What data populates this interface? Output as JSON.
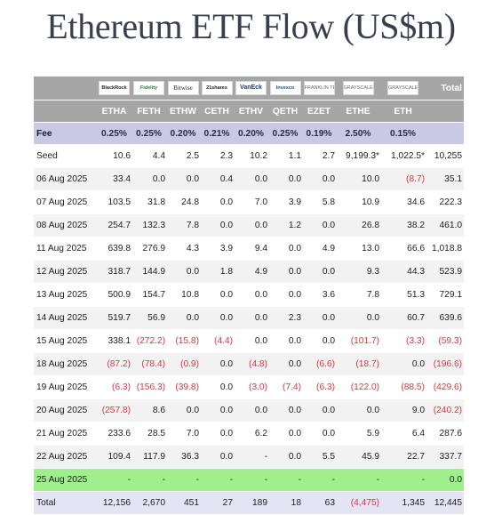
{
  "title": "Ethereum ETF Flow (US$m)",
  "columns": [
    {
      "logo": "BlackRock",
      "logo_icon": "blackrock-logo",
      "ticker": "ETHA",
      "fee": "0.25%"
    },
    {
      "logo": "Fidelity",
      "logo_icon": "fidelity-logo",
      "ticker": "FETH",
      "fee": "0.25%"
    },
    {
      "logo": "Bitwise",
      "logo_icon": "bitwise-logo",
      "ticker": "ETHW",
      "fee": "0.20%"
    },
    {
      "logo": "21shares",
      "logo_icon": "21shares-logo",
      "ticker": "CETH",
      "fee": "0.21%"
    },
    {
      "logo": "VanEck",
      "logo_icon": "vaneck-logo",
      "ticker": "ETHV",
      "fee": "0.20%"
    },
    {
      "logo": "Invesco",
      "logo_icon": "invesco-logo",
      "ticker": "QETH",
      "fee": "0.25%"
    },
    {
      "logo": "FRANKLIN TEMPLETON",
      "logo_icon": "franklin-templeton-logo",
      "ticker": "EZET",
      "fee": "0.19%"
    },
    {
      "logo": "GRAYSCALE",
      "logo_icon": "grayscale-logo",
      "ticker": "ETHE",
      "fee": "2.50%"
    },
    {
      "logo": "GRAYSCALE",
      "logo_icon": "grayscale-logo",
      "ticker": "ETH",
      "fee": "0.15%"
    }
  ],
  "total_header": "Total",
  "fee_label": "Fee",
  "colors": {
    "header_bg": "#a6a6a6",
    "fee_bg": "#c9c9e6",
    "highlight": "#9fef8c",
    "negative": "#e0343d",
    "title": "#3a3f4e"
  },
  "chart_data": {
    "type": "table",
    "title": "Ethereum ETF Flow (US$m)",
    "header": [
      "",
      "ETHA",
      "FETH",
      "ETHW",
      "CETH",
      "ETHV",
      "QETH",
      "EZET",
      "ETHE",
      "ETH",
      "Total"
    ],
    "rows": [
      {
        "label": "Seed",
        "cells": [
          "10.6",
          "4.4",
          "2.5",
          "2.3",
          "10.2",
          "1.1",
          "2.7",
          "9,199.3*",
          "1,022.5*",
          "10,255"
        ]
      },
      {
        "label": "06 Aug 2025",
        "cells": [
          "33.4",
          "0.0",
          "0.0",
          "0.4",
          "0.0",
          "0.0",
          "0.0",
          "10.0",
          "(8.7)",
          "35.1"
        ]
      },
      {
        "label": "07 Aug 2025",
        "cells": [
          "103.5",
          "31.8",
          "24.8",
          "0.0",
          "7.0",
          "3.9",
          "5.8",
          "10.9",
          "34.6",
          "222.3"
        ]
      },
      {
        "label": "08 Aug 2025",
        "cells": [
          "254.7",
          "132.3",
          "7.8",
          "0.0",
          "0.0",
          "1.2",
          "0.0",
          "26.8",
          "38.2",
          "461.0"
        ]
      },
      {
        "label": "11 Aug 2025",
        "cells": [
          "639.8",
          "276.9",
          "4.3",
          "3.9",
          "9.4",
          "0.0",
          "4.9",
          "13.0",
          "66.6",
          "1,018.8"
        ]
      },
      {
        "label": "12 Aug 2025",
        "cells": [
          "318.7",
          "144.9",
          "0.0",
          "1.8",
          "4.9",
          "0.0",
          "0.0",
          "9.3",
          "44.3",
          "523.9"
        ]
      },
      {
        "label": "13 Aug 2025",
        "cells": [
          "500.9",
          "154.7",
          "10.8",
          "0.0",
          "0.0",
          "0.0",
          "3.6",
          "7.8",
          "51.3",
          "729.1"
        ]
      },
      {
        "label": "14 Aug 2025",
        "cells": [
          "519.7",
          "56.9",
          "0.0",
          "0.0",
          "0.0",
          "2.3",
          "0.0",
          "0.0",
          "60.7",
          "639.6"
        ]
      },
      {
        "label": "15 Aug 2025",
        "cells": [
          "338.1",
          "(272.2)",
          "(15.8)",
          "(4.4)",
          "0.0",
          "0.0",
          "0.0",
          "(101.7)",
          "(3.3)",
          "(59.3)"
        ]
      },
      {
        "label": "18 Aug 2025",
        "cells": [
          "(87.2)",
          "(78.4)",
          "(0.9)",
          "0.0",
          "(4.8)",
          "0.0",
          "(6.6)",
          "(18.7)",
          "0.0",
          "(196.6)"
        ]
      },
      {
        "label": "19 Aug 2025",
        "cells": [
          "(6.3)",
          "(156.3)",
          "(39.8)",
          "0.0",
          "(3.0)",
          "(7.4)",
          "(6.3)",
          "(122.0)",
          "(88.5)",
          "(429.6)"
        ]
      },
      {
        "label": "20 Aug 2025",
        "cells": [
          "(257.8)",
          "8.6",
          "0.0",
          "0.0",
          "0.0",
          "0.0",
          "0.0",
          "0.0",
          "9.0",
          "(240.2)"
        ]
      },
      {
        "label": "21 Aug 2025",
        "cells": [
          "233.6",
          "28.5",
          "7.0",
          "0.0",
          "6.2",
          "0.0",
          "0.0",
          "5.9",
          "6.4",
          "287.6"
        ]
      },
      {
        "label": "22 Aug 2025",
        "cells": [
          "109.4",
          "117.9",
          "36.3",
          "0.0",
          "-",
          "0.0",
          "5.5",
          "45.9",
          "22.7",
          "337.7"
        ]
      },
      {
        "label": "25 Aug 2025",
        "highlight": true,
        "cells": [
          "-",
          "-",
          "-",
          "-",
          "-",
          "-",
          "-",
          "-",
          "-",
          "0.0"
        ]
      }
    ],
    "total_row": {
      "label": "Total",
      "cells": [
        "12,156",
        "2,670",
        "451",
        "27",
        "189",
        "18",
        "63",
        "(4,475)",
        "1,345",
        "12,445"
      ]
    }
  }
}
